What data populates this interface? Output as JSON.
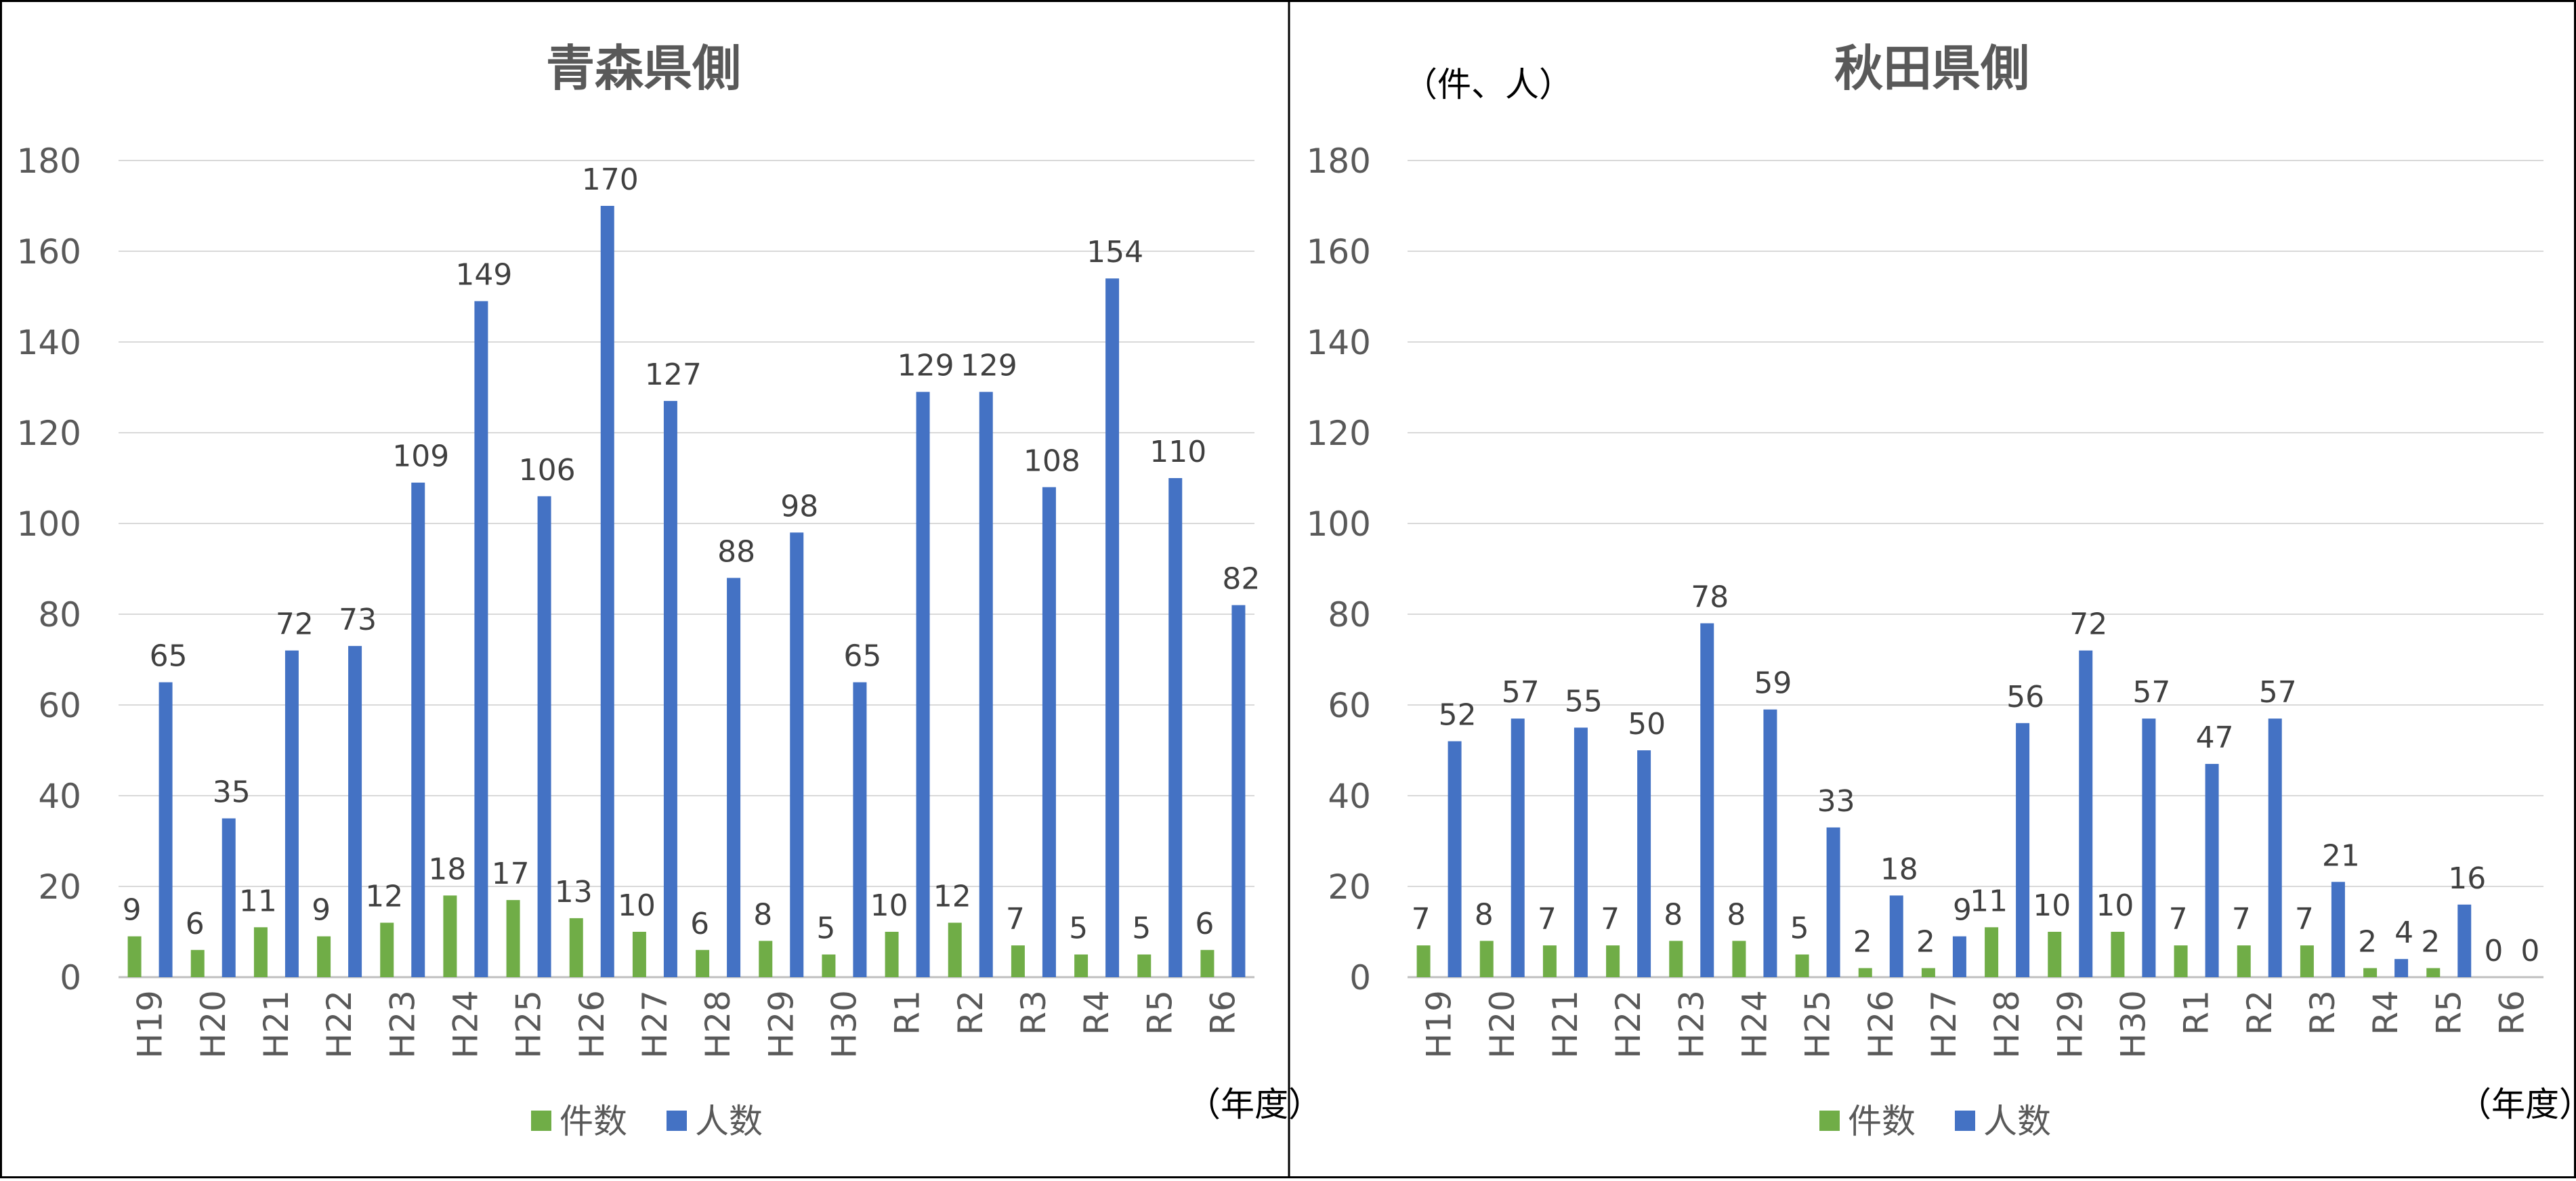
{
  "chart_data": [
    {
      "type": "bar",
      "title": "青森県側",
      "xlabel": "（年度）",
      "ylabel": "",
      "ylim": [
        0,
        180
      ],
      "yticks": [
        "0",
        "20",
        "40",
        "60",
        "80",
        "100",
        "120",
        "140",
        "160",
        "180"
      ],
      "categories": [
        "H19",
        "H20",
        "H21",
        "H22",
        "H23",
        "H24",
        "H25",
        "H26",
        "H27",
        "H28",
        "H29",
        "H30",
        "R1",
        "R2",
        "R3",
        "R4",
        "R5",
        "R6"
      ],
      "series": [
        {
          "name": "件数",
          "color": "#70AD47",
          "values": [
            9,
            6,
            11,
            9,
            12,
            18,
            17,
            13,
            10,
            6,
            8,
            5,
            10,
            12,
            7,
            5,
            5,
            6
          ]
        },
        {
          "name": "人数",
          "color": "#4472C4",
          "values": [
            65,
            35,
            72,
            73,
            109,
            149,
            106,
            170,
            127,
            88,
            98,
            65,
            129,
            129,
            108,
            154,
            110,
            82
          ]
        }
      ],
      "legend": "bottom-center",
      "grid": true
    },
    {
      "type": "bar",
      "title": "秋田県側",
      "unit_label": "（件、人）",
      "xlabel": "（年度）",
      "ylabel": "",
      "ylim": [
        0,
        180
      ],
      "yticks": [
        "0",
        "20",
        "40",
        "60",
        "80",
        "100",
        "120",
        "140",
        "160",
        "180"
      ],
      "categories": [
        "H19",
        "H20",
        "H21",
        "H22",
        "H23",
        "H24",
        "H25",
        "H26",
        "H27",
        "H28",
        "H29",
        "H30",
        "R1",
        "R2",
        "R3",
        "R4",
        "R5",
        "R6"
      ],
      "series": [
        {
          "name": "件数",
          "color": "#70AD47",
          "values": [
            7,
            8,
            7,
            7,
            8,
            8,
            5,
            2,
            2,
            11,
            10,
            10,
            7,
            7,
            7,
            2,
            2,
            0
          ]
        },
        {
          "name": "人数",
          "color": "#4472C4",
          "values": [
            52,
            57,
            55,
            50,
            78,
            59,
            33,
            18,
            9,
            56,
            72,
            57,
            47,
            57,
            21,
            4,
            16,
            0
          ]
        }
      ],
      "legend": "bottom-center",
      "grid": true
    }
  ]
}
